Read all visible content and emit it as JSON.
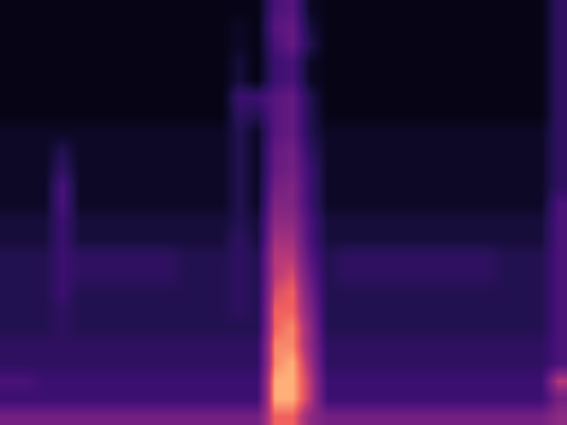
{
  "chart_data": {
    "type": "heatmap",
    "xlim": [
      -0.5,
      31.5
    ],
    "ylim": [
      23.5,
      -0.5
    ],
    "zlim": [
      0,
      10
    ],
    "tick_labels": false,
    "grid": false,
    "cells": [
      [
        0.5,
        0.5,
        0.5,
        0.5,
        0.5,
        0.5,
        0.5,
        0.5,
        0.5,
        0.5,
        0.5,
        0.5,
        0.5,
        0.5,
        0.5,
        3.5,
        4,
        1,
        0.5,
        0.5,
        0.5,
        0.5,
        0.5,
        0.5,
        0.5,
        0.5,
        0.5,
        0.5,
        0.5,
        0.5,
        0.5,
        2.5
      ],
      [
        0.5,
        0.5,
        0.5,
        0.5,
        0.5,
        0.5,
        0.5,
        0.5,
        0.5,
        0.5,
        0.5,
        0.5,
        0.5,
        1,
        0.5,
        4,
        4.5,
        1.5,
        0.5,
        0.5,
        0.5,
        0.5,
        0.5,
        0.5,
        0.5,
        0.5,
        0.5,
        0.5,
        0.5,
        0.5,
        0.5,
        2.5
      ],
      [
        0.5,
        0.5,
        0.5,
        0.5,
        0.5,
        0.5,
        0.5,
        0.5,
        0.5,
        0.5,
        0.5,
        0.5,
        0.5,
        1,
        0.5,
        3.5,
        4.5,
        2,
        0.5,
        0.5,
        0.5,
        0.5,
        0.5,
        0.5,
        0.5,
        0.5,
        0.5,
        0.5,
        0.5,
        0.5,
        0.5,
        2.5
      ],
      [
        0.5,
        0.5,
        0.5,
        0.5,
        0.5,
        0.5,
        0.5,
        0.5,
        0.5,
        0.5,
        0.5,
        0.5,
        0.5,
        1.5,
        0.5,
        3,
        3.5,
        1,
        0.5,
        0.5,
        0.5,
        0.5,
        0.5,
        0.5,
        0.5,
        0.5,
        0.5,
        0.5,
        0.5,
        0.5,
        0.5,
        2.5
      ],
      [
        0.5,
        0.5,
        0.5,
        0.5,
        0.5,
        0.5,
        0.5,
        0.5,
        0.5,
        0.5,
        0.5,
        0.5,
        0.5,
        1.5,
        0.5,
        3,
        3.5,
        1,
        0.5,
        0.5,
        0.5,
        0.5,
        0.5,
        0.5,
        0.5,
        0.5,
        0.5,
        0.5,
        0.5,
        0.5,
        0.5,
        2.5
      ],
      [
        0.5,
        0.5,
        0.5,
        0.5,
        0.5,
        0.5,
        0.5,
        0.5,
        0.5,
        0.5,
        0.5,
        0.5,
        0.5,
        3,
        3,
        4,
        4.5,
        2,
        0.5,
        0.5,
        0.5,
        0.5,
        0.5,
        0.5,
        0.5,
        0.5,
        0.5,
        0.5,
        0.5,
        0.5,
        0.5,
        2.5
      ],
      [
        0.5,
        0.5,
        0.5,
        0.5,
        0.5,
        0.5,
        0.5,
        0.5,
        0.5,
        0.5,
        0.5,
        0.5,
        0.5,
        2.5,
        2,
        4,
        4.5,
        2,
        0.5,
        0.5,
        0.5,
        0.5,
        0.5,
        0.5,
        0.5,
        0.5,
        0.5,
        0.5,
        0.5,
        0.5,
        0.5,
        2.5
      ],
      [
        1,
        1,
        1,
        1,
        1,
        1,
        1,
        1,
        1,
        1,
        1,
        1,
        1,
        2,
        1,
        4,
        4.5,
        2,
        1,
        1,
        1,
        1,
        1,
        1,
        1,
        1,
        1,
        1,
        1,
        1,
        1,
        2.5
      ],
      [
        1,
        1,
        1,
        2,
        1,
        1,
        1,
        1,
        1,
        1,
        1,
        1,
        1,
        2,
        1,
        4.5,
        5,
        2.5,
        1,
        1,
        1,
        1,
        1,
        1,
        1,
        1,
        1,
        1,
        1,
        1,
        1,
        2.5
      ],
      [
        1,
        1,
        1,
        2.5,
        1,
        1,
        1,
        1,
        1,
        1,
        1,
        1,
        1,
        2,
        1,
        4.5,
        5,
        3,
        1,
        1,
        1,
        1,
        1,
        1,
        1,
        1,
        1,
        1,
        1,
        1,
        1,
        2.5
      ],
      [
        1,
        1,
        1,
        3.5,
        1,
        1,
        1,
        1,
        1,
        1,
        1,
        1,
        1,
        2,
        1,
        5,
        5.5,
        3,
        1,
        1,
        1,
        1,
        1,
        1,
        1,
        1,
        1,
        1,
        1,
        1,
        1,
        2.5
      ],
      [
        1,
        1,
        1,
        3.5,
        1,
        1,
        1,
        1,
        1,
        1,
        1,
        1,
        1,
        2,
        1,
        5.5,
        5.5,
        3,
        1,
        1,
        1,
        1,
        1,
        1,
        1,
        1,
        1,
        1,
        1,
        1,
        1,
        3.5
      ],
      [
        1.5,
        1.5,
        1.5,
        3,
        1.5,
        1.5,
        1.5,
        1.5,
        1.5,
        1.5,
        1.5,
        1.5,
        1.5,
        2,
        1.5,
        6,
        6,
        3.5,
        1.5,
        1.5,
        1.5,
        1.5,
        1.5,
        1.5,
        1.5,
        1.5,
        1.5,
        1.5,
        1.5,
        1.5,
        1.5,
        3.5
      ],
      [
        1.5,
        1.5,
        1.5,
        3,
        1.5,
        1.5,
        1.5,
        1.5,
        1.5,
        1.5,
        1.5,
        1.5,
        1.5,
        2.5,
        1.5,
        6.5,
        6.5,
        3.5,
        1.5,
        1.5,
        1.5,
        1.5,
        1.5,
        1.5,
        1.5,
        1.5,
        1.5,
        1.5,
        1.5,
        1.5,
        1.5,
        3.5
      ],
      [
        2,
        2,
        2,
        3,
        2.5,
        2.5,
        2.5,
        2.5,
        2.5,
        2.5,
        2,
        2,
        2,
        2.5,
        2,
        7,
        7,
        4,
        2,
        2.5,
        2.5,
        2.5,
        2.5,
        2.5,
        2.5,
        2.5,
        2.5,
        2.5,
        2,
        2,
        2,
        3.5
      ],
      [
        2,
        2,
        2,
        3,
        2.5,
        2.5,
        2.5,
        2.5,
        2.5,
        2.5,
        2,
        2,
        2,
        2.5,
        2,
        7,
        7.5,
        4.5,
        2,
        2.5,
        2.5,
        2.5,
        2.5,
        2.5,
        2.5,
        2.5,
        2.5,
        2.5,
        2,
        2,
        2,
        3.5
      ],
      [
        2,
        2,
        2,
        3,
        2,
        2,
        2,
        2,
        2,
        2,
        2,
        2,
        2,
        2.5,
        2,
        7.5,
        8,
        5,
        2,
        2,
        2,
        2,
        2,
        2,
        2,
        2,
        2,
        2,
        2,
        2,
        2,
        3.5
      ],
      [
        2,
        2,
        2,
        2.5,
        2,
        2,
        2,
        2,
        2,
        2,
        2,
        2,
        2,
        2.5,
        2,
        8,
        8,
        5.5,
        2,
        2,
        2,
        2,
        2,
        2,
        2,
        2,
        2,
        2,
        2,
        2,
        2,
        3.5
      ],
      [
        2,
        2,
        2,
        2.5,
        2,
        2,
        2,
        2,
        2,
        2,
        2,
        2,
        2,
        2,
        2,
        8,
        8.5,
        6,
        2,
        2,
        2,
        2,
        2,
        2,
        2,
        2,
        2,
        2,
        2,
        2,
        2,
        3.5
      ],
      [
        2.5,
        2.5,
        2.5,
        2.5,
        2.5,
        2.5,
        2.5,
        2.5,
        2.5,
        2.5,
        2.5,
        2.5,
        2.5,
        2.5,
        2.5,
        8.5,
        8.5,
        6,
        2.5,
        2.5,
        2.5,
        2.5,
        2.5,
        2.5,
        2.5,
        2.5,
        2.5,
        2.5,
        2.5,
        2.5,
        2.5,
        3.5
      ],
      [
        2.5,
        2.5,
        2.5,
        2.5,
        2.5,
        2.5,
        2.5,
        2.5,
        2.5,
        2.5,
        2.5,
        2.5,
        2.5,
        2.5,
        2.5,
        8.5,
        9,
        6.5,
        2.5,
        2.5,
        2.5,
        2.5,
        2.5,
        2.5,
        2.5,
        2.5,
        2.5,
        2.5,
        2.5,
        2.5,
        2.5,
        3.5
      ],
      [
        3.5,
        3.5,
        3,
        3,
        3,
        3,
        3,
        3,
        3,
        3,
        3,
        3,
        3,
        3,
        3,
        9,
        9,
        7,
        3,
        3,
        3,
        3,
        3,
        3,
        3,
        3,
        3,
        3,
        3,
        3,
        3,
        7
      ],
      [
        3,
        3,
        3,
        3,
        3,
        3,
        3,
        3,
        3,
        3,
        3,
        3,
        3,
        3,
        3,
        9,
        9,
        7,
        3,
        3,
        3,
        3,
        3,
        3,
        3,
        3,
        3,
        3,
        3,
        3,
        3,
        5
      ],
      [
        5,
        5,
        5,
        5,
        5,
        5,
        5,
        5,
        5,
        5,
        5,
        5,
        5,
        5,
        5,
        8,
        8,
        6,
        5,
        5,
        5,
        5,
        5,
        5,
        5,
        5,
        5,
        5,
        5,
        5,
        5,
        6
      ]
    ]
  }
}
